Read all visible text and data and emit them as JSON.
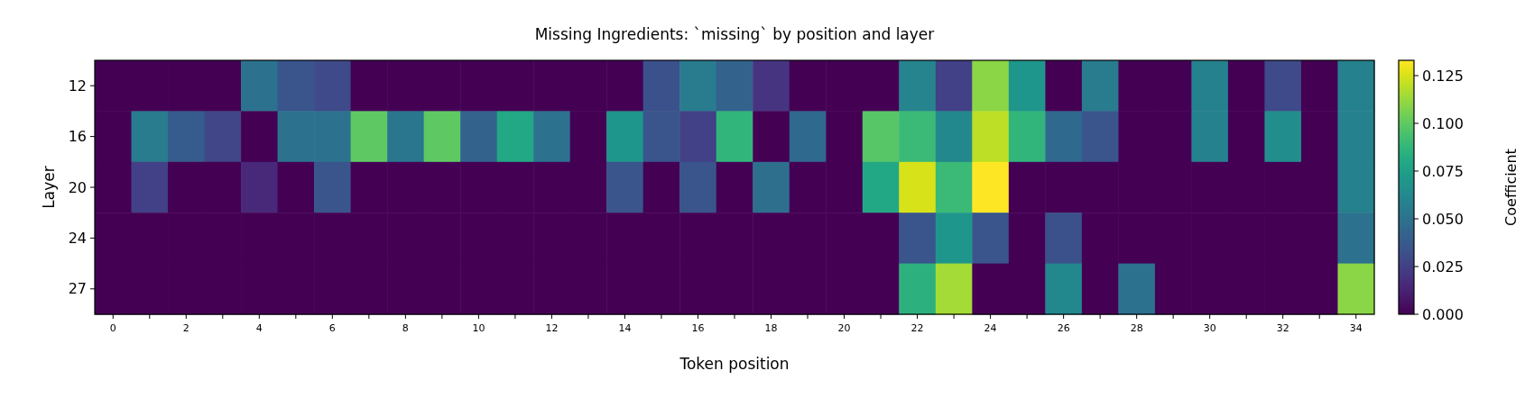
{
  "chart_data": {
    "type": "heatmap",
    "title": "Missing Ingredients: `missing` by position and layer",
    "xlabel": "Token position",
    "ylabel": "Layer",
    "clabel": "Coefficient",
    "categories": [
      "0",
      null,
      "2",
      null,
      "4",
      null,
      "6",
      null,
      "8",
      null,
      "10",
      null,
      "12",
      null,
      "14",
      null,
      "16",
      null,
      "18",
      null,
      "20",
      null,
      "22",
      null,
      "24",
      null,
      "26",
      null,
      "28",
      null,
      "30",
      null,
      "32",
      null,
      "34"
    ],
    "y_categories": [
      "12",
      "16",
      "20",
      "24",
      "27"
    ],
    "cells": [
      [
        0,
        0,
        0,
        0,
        0.05,
        0.035,
        0.03,
        0,
        0,
        0,
        0,
        0,
        0,
        0,
        0,
        0.033,
        0.055,
        0.042,
        0.02,
        0,
        0,
        0,
        0.06,
        0.025,
        0.11,
        0.07,
        0,
        0.055,
        0,
        0,
        0.058,
        0,
        0.03,
        0,
        0.058
      ],
      [
        0,
        0.055,
        0.038,
        0.028,
        0,
        0.05,
        0.05,
        0.1,
        0.052,
        0.1,
        0.042,
        0.08,
        0.05,
        0,
        0.07,
        0.035,
        0.025,
        0.087,
        0,
        0.045,
        0,
        0.098,
        0.09,
        0.062,
        0.12,
        0.087,
        0.045,
        0.035,
        0,
        0,
        0.058,
        0,
        0.065,
        0,
        0.058
      ],
      [
        0,
        0.025,
        0,
        0,
        0.015,
        0,
        0.035,
        0,
        0,
        0,
        0,
        0,
        0,
        0,
        0.035,
        0,
        0.035,
        0,
        0.048,
        0,
        0,
        0.08,
        0.125,
        0.09,
        0.133,
        0,
        0,
        0,
        0,
        0,
        0,
        0,
        0,
        0,
        0.058
      ],
      [
        0,
        0,
        0,
        0,
        0,
        0,
        0,
        0,
        0,
        0,
        0,
        0,
        0,
        0,
        0,
        0,
        0,
        0,
        0,
        0,
        0,
        0,
        0.035,
        0.07,
        0.035,
        0,
        0.033,
        0,
        0,
        0,
        0,
        0,
        0,
        0,
        0.05
      ],
      [
        0,
        0,
        0,
        0,
        0,
        0,
        0,
        0,
        0,
        0,
        0,
        0,
        0,
        0,
        0,
        0,
        0,
        0,
        0,
        0,
        0,
        0,
        0.085,
        0.115,
        0,
        0,
        0.062,
        0,
        0.05,
        0,
        0,
        0,
        0,
        0,
        0.11
      ]
    ],
    "clim": [
      0,
      0.133
    ],
    "cticks": [
      {
        "value": 0,
        "label": "0.000"
      },
      {
        "value": 0.025,
        "label": "0.025"
      },
      {
        "value": 0.05,
        "label": "0.050"
      },
      {
        "value": 0.075,
        "label": "0.075"
      },
      {
        "value": 0.1,
        "label": "0.100"
      },
      {
        "value": 0.125,
        "label": "0.125"
      }
    ]
  }
}
